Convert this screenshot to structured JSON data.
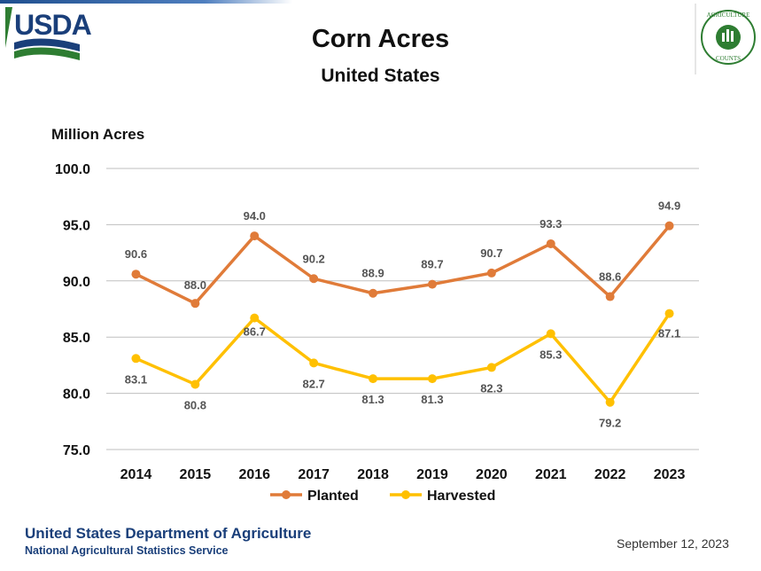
{
  "header": {
    "logo_left_text": "USDA",
    "logo_right_text_top": "AGRICULTURE",
    "logo_right_text_bottom": "COUNTS"
  },
  "footer": {
    "department": "United States Department of Agriculture",
    "agency": "National Agricultural Statistics Service",
    "date": "September 12, 2023"
  },
  "colors": {
    "planted": "#E07B39",
    "harvested": "#FFC000",
    "usda_blue": "#1A3F7A",
    "usda_green": "#2E7D32"
  },
  "chart_data": {
    "type": "line",
    "title": "Corn Acres",
    "subtitle": "United States",
    "ylabel": "Million Acres",
    "xlabel": "",
    "categories": [
      "2014",
      "2015",
      "2016",
      "2017",
      "2018",
      "2019",
      "2020",
      "2021",
      "2022",
      "2023"
    ],
    "ylim": [
      75.0,
      100.0
    ],
    "yticks": [
      "75.0",
      "80.0",
      "85.0",
      "90.0",
      "95.0",
      "100.0"
    ],
    "grid": true,
    "legend_position": "bottom",
    "series": [
      {
        "name": "Planted",
        "values": [
          90.6,
          88.0,
          94.0,
          90.2,
          88.9,
          89.7,
          90.7,
          93.3,
          88.6,
          94.9
        ],
        "labels": [
          "90.6",
          "88.0",
          "94.0",
          "90.2",
          "88.9",
          "89.7",
          "90.7",
          "93.3",
          "88.6",
          "94.9"
        ]
      },
      {
        "name": "Harvested",
        "values": [
          83.1,
          80.8,
          86.7,
          82.7,
          81.3,
          81.3,
          82.3,
          85.3,
          79.2,
          87.1
        ],
        "labels": [
          "83.1",
          "80.8",
          "86.7",
          "82.7",
          "81.3",
          "81.3",
          "82.3",
          "85.3",
          "79.2",
          "87.1"
        ]
      }
    ]
  }
}
